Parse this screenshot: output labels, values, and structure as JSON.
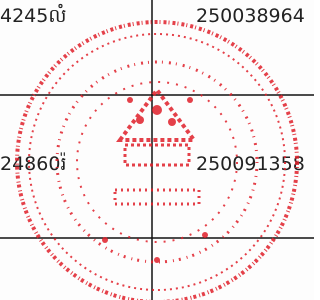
{
  "table": {
    "rows": [
      [
        "4245លំ",
        "250038964"
      ],
      [
        "24860រ៉",
        "250091358"
      ]
    ]
  }
}
